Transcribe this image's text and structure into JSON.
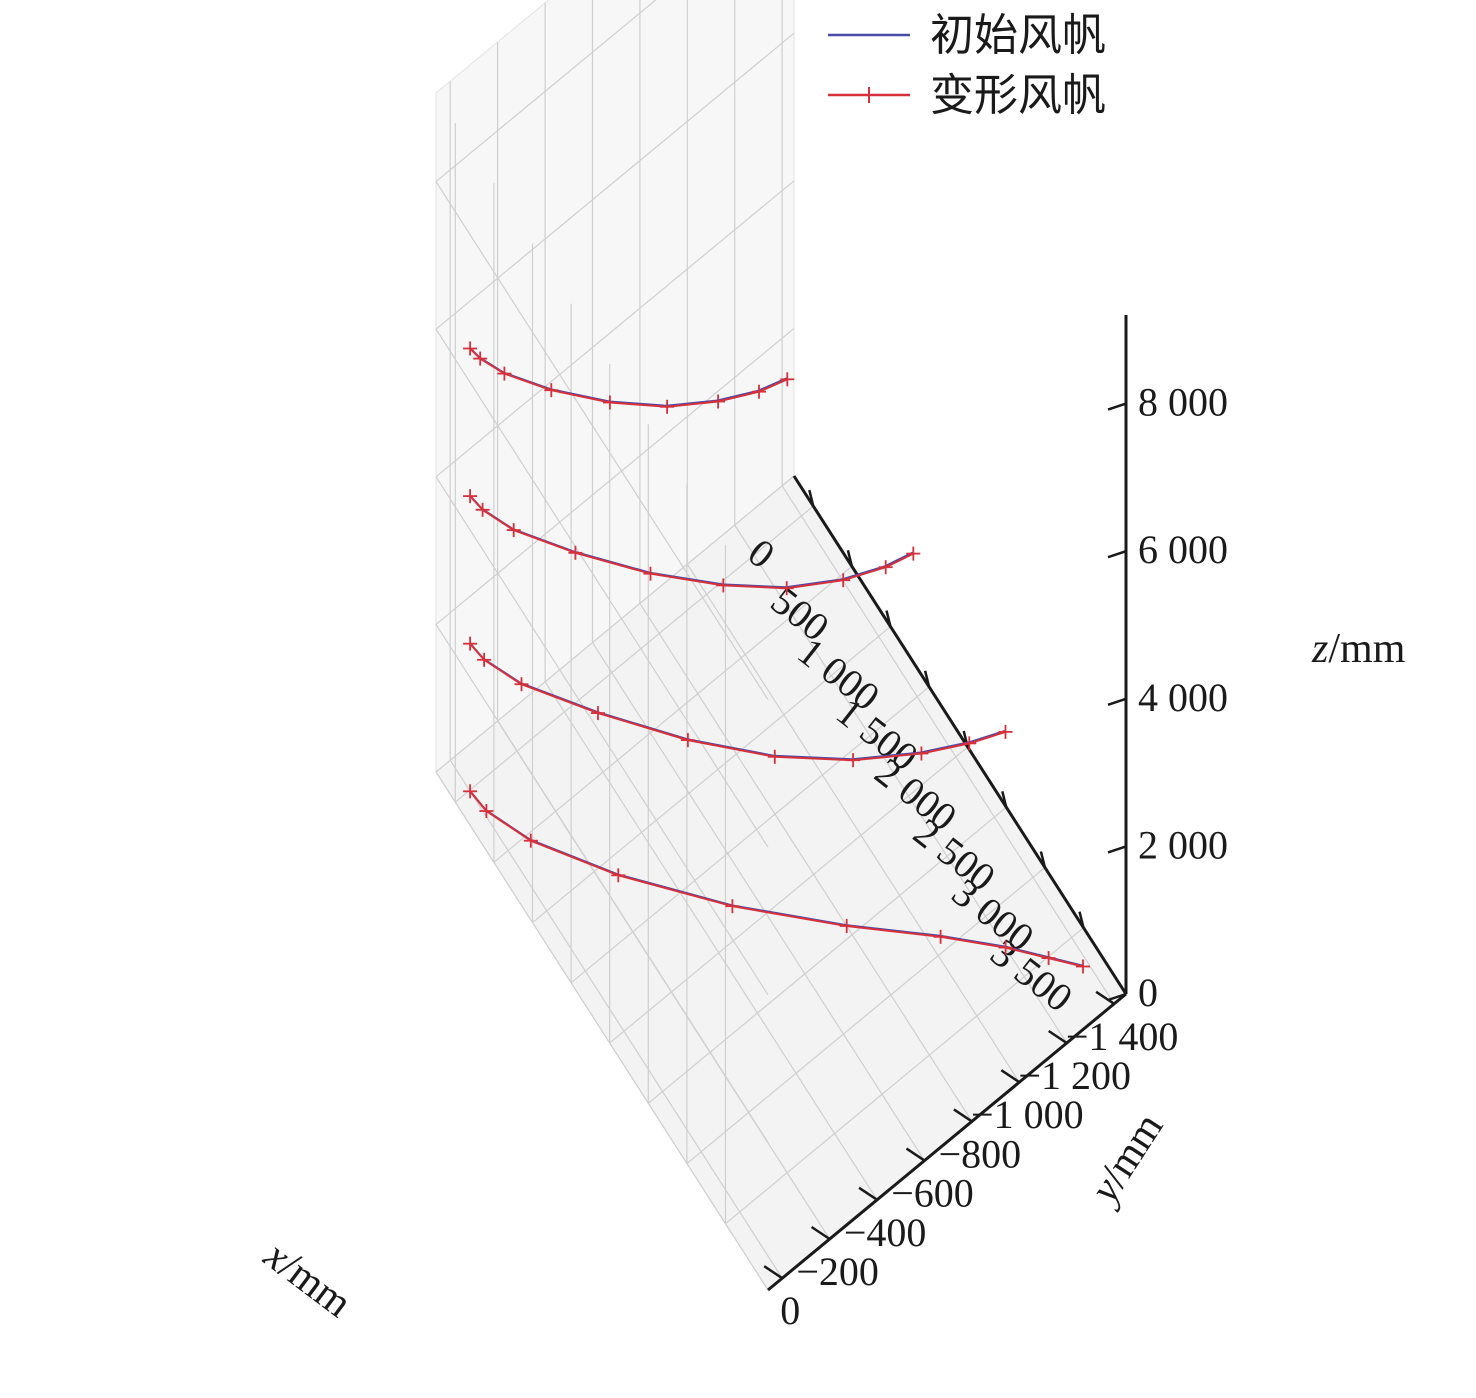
{
  "chart_data": {
    "type": "line",
    "projection": "3d",
    "xlabel": {
      "var": "x",
      "unit": "/mm"
    },
    "ylabel": {
      "var": "y",
      "unit": "/mm"
    },
    "zlabel": {
      "var": "z",
      "unit": "/mm"
    },
    "xlim": [
      -250,
      4050
    ],
    "ylim": [
      -1450,
      60
    ],
    "zlim": [
      0,
      9200
    ],
    "xticks": [
      {
        "value": 0,
        "label": "0"
      },
      {
        "value": 500,
        "label": "500"
      },
      {
        "value": 1000,
        "label": "1 000"
      },
      {
        "value": 1500,
        "label": "1 500"
      },
      {
        "value": 2000,
        "label": "2 000"
      },
      {
        "value": 2500,
        "label": "2 500"
      },
      {
        "value": 3000,
        "label": "3 000"
      },
      {
        "value": 3500,
        "label": "3 500"
      }
    ],
    "yticks": [
      {
        "value": 0,
        "label": "0"
      },
      {
        "value": -200,
        "label": "−200"
      },
      {
        "value": -400,
        "label": "−400"
      },
      {
        "value": -600,
        "label": "−600"
      },
      {
        "value": -800,
        "label": "−800"
      },
      {
        "value": -1000,
        "label": "−1 000"
      },
      {
        "value": -1200,
        "label": "−1 200"
      },
      {
        "value": -1400,
        "label": "−1 400"
      }
    ],
    "zticks": [
      {
        "value": 0,
        "label": "0"
      },
      {
        "value": 2000,
        "label": "2 000"
      },
      {
        "value": 4000,
        "label": "4 000"
      },
      {
        "value": 6000,
        "label": "6 000"
      },
      {
        "value": 8000,
        "label": "8 000"
      }
    ],
    "grid": true,
    "legend": {
      "position": "top-right",
      "entries": [
        {
          "label": "初始风帆",
          "color": "#4a4aa8",
          "marker": "none"
        },
        {
          "label": "变形风帆",
          "color": "#d6303a",
          "marker": "+"
        }
      ]
    },
    "series": [
      {
        "name": "初始风帆",
        "color": "#4a4aa8",
        "sections": [
          {
            "z": 0,
            "points": [
              [
                0,
                0
              ],
              [
                180,
                -10
              ],
              [
                540,
                -80
              ],
              [
                1120,
                -260
              ],
              [
                1800,
                -520
              ],
              [
                2420,
                -800
              ],
              [
                2900,
                -1040
              ],
              [
                3250,
                -1200
              ],
              [
                3500,
                -1300
              ],
              [
                3700,
                -1380
              ]
            ]
          },
          {
            "z": 2000,
            "points": [
              [
                0,
                0
              ],
              [
                150,
                -10
              ],
              [
                450,
                -70
              ],
              [
                950,
                -230
              ],
              [
                1500,
                -430
              ],
              [
                1980,
                -640
              ],
              [
                2350,
                -850
              ],
              [
                2620,
                -1050
              ],
              [
                2780,
                -1200
              ],
              [
                2880,
                -1320
              ]
            ]
          },
          {
            "z": 4000,
            "points": [
              [
                0,
                0
              ],
              [
                130,
                -10
              ],
              [
                380,
                -60
              ],
              [
                780,
                -190
              ],
              [
                1230,
                -360
              ],
              [
                1620,
                -540
              ],
              [
                1920,
                -710
              ],
              [
                2130,
                -880
              ],
              [
                2250,
                -1020
              ],
              [
                2300,
                -1120
              ]
            ]
          },
          {
            "z": 6000,
            "points": [
              [
                0,
                0
              ],
              [
                100,
                -10
              ],
              [
                290,
                -50
              ],
              [
                590,
                -150
              ],
              [
                920,
                -290
              ],
              [
                1200,
                -440
              ],
              [
                1400,
                -590
              ],
              [
                1530,
                -720
              ],
              [
                1590,
                -820
              ]
            ]
          }
        ]
      },
      {
        "name": "变形风帆",
        "color": "#d6303a",
        "sections": [
          {
            "z": 0,
            "points": [
              [
                0,
                0
              ],
              [
                180,
                -10
              ],
              [
                540,
                -80
              ],
              [
                1120,
                -260
              ],
              [
                1800,
                -520
              ],
              [
                2420,
                -800
              ],
              [
                2900,
                -1040
              ],
              [
                3250,
                -1200
              ],
              [
                3500,
                -1300
              ],
              [
                3700,
                -1380
              ]
            ]
          },
          {
            "z": 2000,
            "points": [
              [
                0,
                0
              ],
              [
                150,
                -10
              ],
              [
                450,
                -70
              ],
              [
                950,
                -230
              ],
              [
                1500,
                -430
              ],
              [
                1980,
                -640
              ],
              [
                2350,
                -850
              ],
              [
                2620,
                -1050
              ],
              [
                2780,
                -1200
              ],
              [
                2880,
                -1320
              ]
            ]
          },
          {
            "z": 4000,
            "points": [
              [
                0,
                0
              ],
              [
                130,
                -10
              ],
              [
                380,
                -60
              ],
              [
                780,
                -190
              ],
              [
                1230,
                -360
              ],
              [
                1620,
                -540
              ],
              [
                1920,
                -710
              ],
              [
                2130,
                -880
              ],
              [
                2250,
                -1020
              ],
              [
                2300,
                -1120
              ]
            ]
          },
          {
            "z": 6000,
            "points": [
              [
                0,
                0
              ],
              [
                100,
                -10
              ],
              [
                290,
                -50
              ],
              [
                590,
                -150
              ],
              [
                920,
                -290
              ],
              [
                1200,
                -440
              ],
              [
                1400,
                -590
              ],
              [
                1530,
                -720
              ],
              [
                1590,
                -820
              ]
            ]
          }
        ]
      }
    ]
  }
}
